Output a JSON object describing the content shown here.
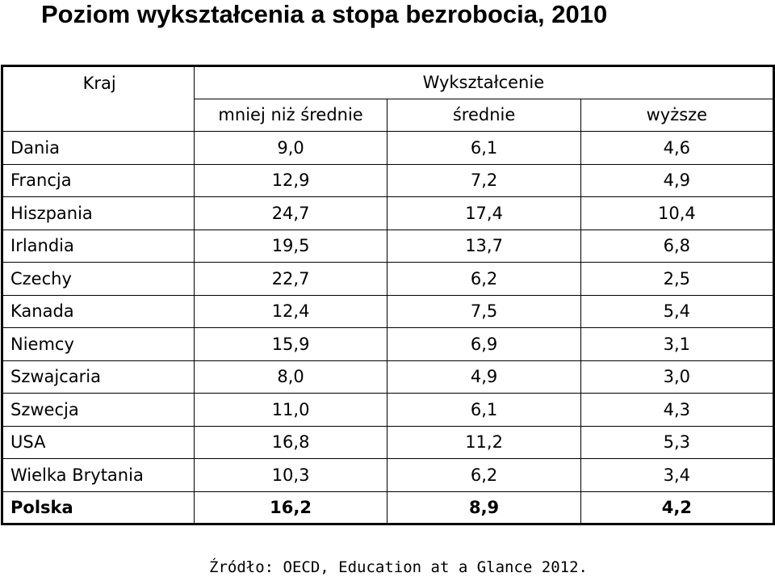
{
  "title": "Poziom wykształcenia a stopa bezrobocia, 2010",
  "table": {
    "header_country": "Kraj",
    "header_group": "Wykształcenie",
    "columns": [
      "mniej niż średnie",
      "średnie",
      "wyższe"
    ],
    "rows": [
      {
        "country": "Dania",
        "values": [
          "9,0",
          "6,1",
          "4,6"
        ]
      },
      {
        "country": "Francja",
        "values": [
          "12,9",
          "7,2",
          "4,9"
        ]
      },
      {
        "country": "Hiszpania",
        "values": [
          "24,7",
          "17,4",
          "10,4"
        ]
      },
      {
        "country": "Irlandia",
        "values": [
          "19,5",
          "13,7",
          "6,8"
        ]
      },
      {
        "country": "Czechy",
        "values": [
          "22,7",
          "6,2",
          "2,5"
        ]
      },
      {
        "country": "Kanada",
        "values": [
          "12,4",
          "7,5",
          "5,4"
        ]
      },
      {
        "country": "Niemcy",
        "values": [
          "15,9",
          "6,9",
          "3,1"
        ]
      },
      {
        "country": "Szwajcaria",
        "values": [
          "8,0",
          "4,9",
          "3,0"
        ]
      },
      {
        "country": "Szwecja",
        "values": [
          "11,0",
          "6,1",
          "4,3"
        ]
      },
      {
        "country": "USA",
        "values": [
          "16,8",
          "11,2",
          "5,3"
        ]
      },
      {
        "country": "Wielka Brytania",
        "values": [
          "10,3",
          "6,2",
          "3,4"
        ]
      },
      {
        "country": "Polska",
        "values": [
          "16,2",
          "8,9",
          "4,2"
        ]
      }
    ]
  },
  "source": "Źródło: OECD, Education at a Glance 2012."
}
